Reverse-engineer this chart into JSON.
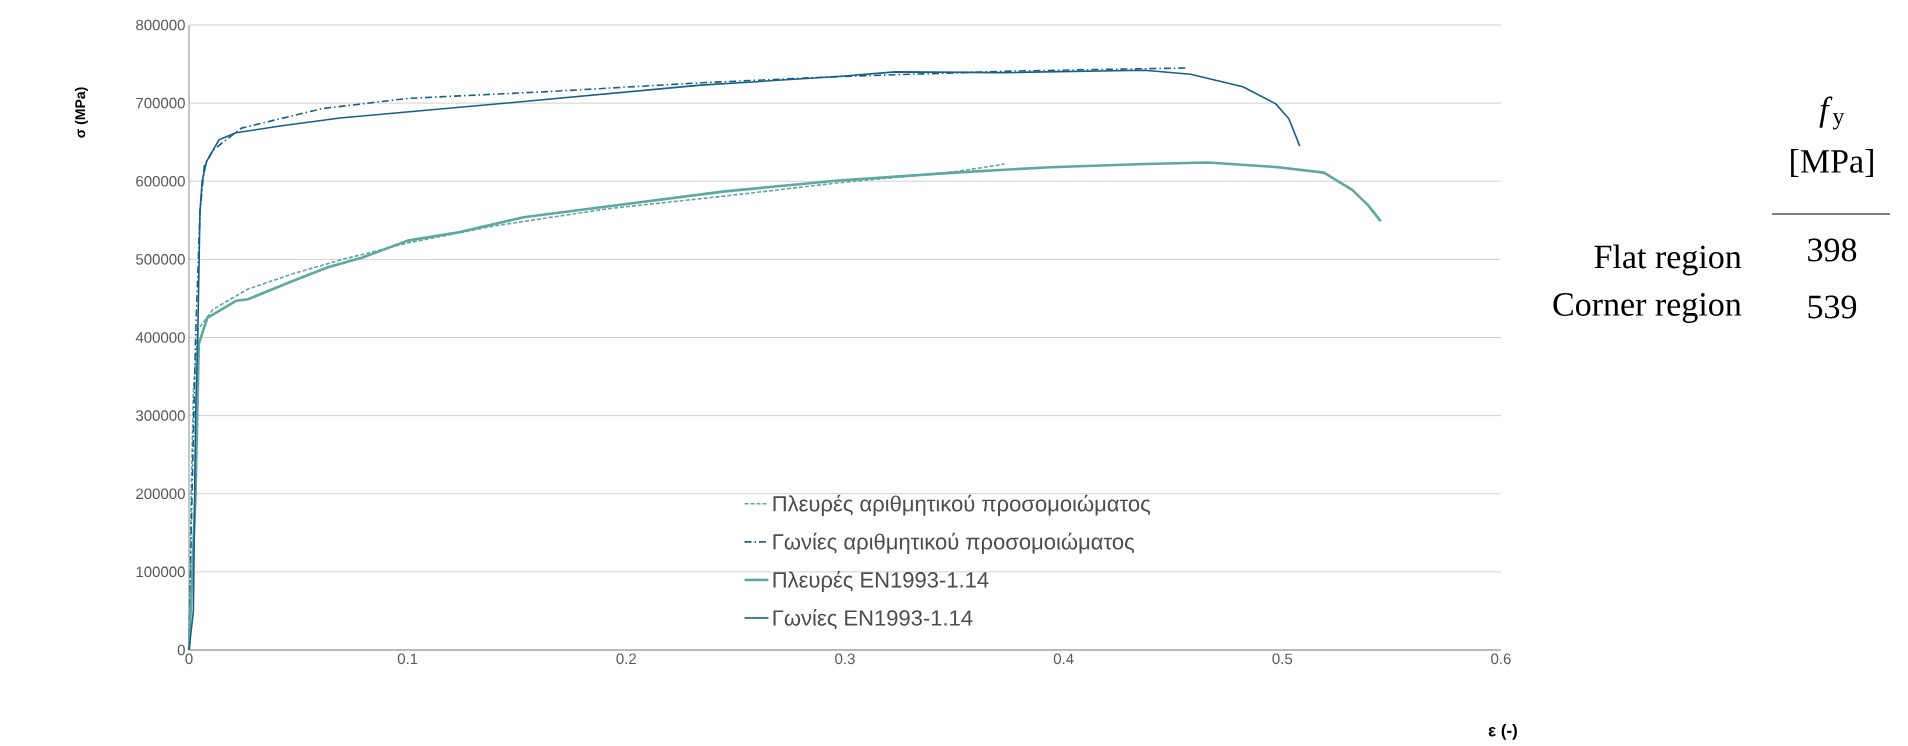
{
  "chart_data": {
    "type": "line",
    "xlabel": "ε (-)",
    "ylabel": "σ (MPa)",
    "xlim": [
      0,
      0.6
    ],
    "xticks": [
      0,
      0.1,
      0.2,
      0.3,
      0.4,
      0.5,
      0.6
    ],
    "ylim": [
      0,
      800000
    ],
    "yticks": [
      0,
      100000,
      200000,
      300000,
      400000,
      500000,
      600000,
      700000,
      800000
    ],
    "grid": "y",
    "legend": "bottom right",
    "marker": "none",
    "series": [
      {
        "name": "Πλευρές αριθμητικού προσομοιώματος",
        "color": "#5fa8a0",
        "line_style": "dashed",
        "x": [
          0,
          0.001,
          0.002,
          0.004,
          0.011,
          0.027,
          0.048,
          0.069,
          0.1,
          0.14,
          0.192,
          0.245,
          0.297,
          0.35,
          0.373
        ],
        "values": [
          0,
          200000,
          330000,
          410000,
          436000,
          462000,
          482000,
          499000,
          521000,
          543000,
          565000,
          581000,
          598000,
          612000,
          622000
        ]
      },
      {
        "name": "Γωνίες αριθμητικού προσομοιώματος",
        "color": "#176087",
        "line_style": "dashdot",
        "x": [
          0,
          0.001,
          0.003,
          0.005,
          0.007,
          0.011,
          0.024,
          0.061,
          0.1,
          0.166,
          0.234,
          0.297,
          0.376,
          0.457
        ],
        "values": [
          0,
          150000,
          400000,
          560000,
          620000,
          640000,
          668000,
          693000,
          706000,
          715000,
          726000,
          734000,
          741000,
          745000
        ]
      },
      {
        "name": "Πλευρές EN1993-1.14",
        "color": "#5fa8a0",
        "line_style": "solid",
        "x": [
          0,
          0.003,
          0.0045,
          0.0084,
          0.0215,
          0.027,
          0.048,
          0.0635,
          0.079,
          0.1,
          0.124,
          0.153,
          0.192,
          0.245,
          0.297,
          0.35,
          0.394,
          0.437,
          0.466,
          0.498,
          0.519,
          0.532,
          0.539,
          0.545
        ],
        "values": [
          0,
          200000,
          392000,
          425000,
          447000,
          449000,
          473000,
          490000,
          502000,
          524000,
          535000,
          554000,
          568000,
          587000,
          601000,
          611000,
          618000,
          622000,
          624000,
          618000,
          611000,
          589000,
          570000,
          549000
        ]
      },
      {
        "name": "Γωνίες EN1993-1.14",
        "color": "#176087",
        "line_style": "solid",
        "x": [
          0,
          0.002,
          0.003,
          0.004,
          0.005,
          0.006,
          0.008,
          0.0137,
          0.0215,
          0.0425,
          0.069,
          0.153,
          0.234,
          0.297,
          0.323,
          0.371,
          0.437,
          0.458,
          0.482,
          0.497,
          0.503,
          0.508
        ],
        "values": [
          0,
          50000,
          300000,
          400000,
          560000,
          600000,
          625000,
          653000,
          662000,
          671000,
          681000,
          702000,
          723000,
          734000,
          740000,
          739000,
          742000,
          737000,
          721000,
          699000,
          680000,
          645000
        ]
      }
    ],
    "annotations": [
      "*f*$_{y}$",
      "[MPa]",
      "Flat region",
      "398",
      "Corner region",
      "539"
    ]
  }
}
